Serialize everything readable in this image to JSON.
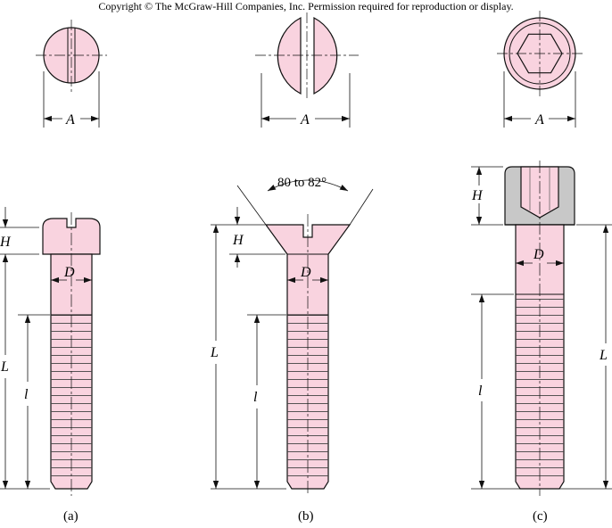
{
  "copyright": "Copyright © The McGraw-Hill Companies, Inc. Permission required for reproduction or display.",
  "colors": {
    "fill": "#f9d3df",
    "head_shade": "#c8c8c8",
    "line": "#111111"
  },
  "labels": {
    "A": "A",
    "D": "D",
    "H": "H",
    "L": "L",
    "l": "l"
  },
  "angle_label": "80 to 82°",
  "captions": {
    "a": "(a)",
    "b": "(b)",
    "c": "(c)"
  }
}
